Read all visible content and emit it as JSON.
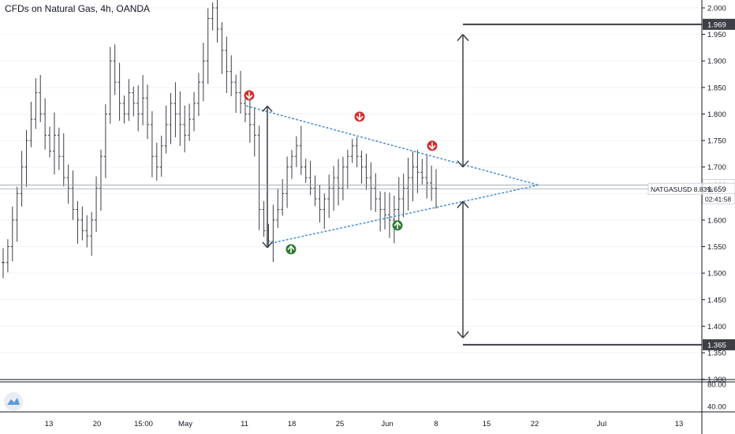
{
  "title": "CFDs on Natural Gas, 4h, OANDA",
  "symbol_label": "NATGASUSD 8.83%",
  "countdown": "02:41:58",
  "chart_data": {
    "type": "candlestick",
    "price_axis": {
      "ticks": [
        "2.000",
        "1.950",
        "1.900",
        "1.850",
        "1.800",
        "1.750",
        "1.700",
        "1.650",
        "1.600",
        "1.550",
        "1.500",
        "1.450",
        "1.400",
        "1.350",
        "1.300"
      ],
      "ylim": [
        1.29,
        2.02
      ]
    },
    "indicator_axis": {
      "ticks": [
        "80.00",
        "40.00"
      ]
    },
    "time_axis": [
      "13",
      "20",
      "15:00",
      "May",
      "11",
      "18",
      "25",
      "Jun",
      "8",
      "15",
      "22",
      "Jul",
      "13"
    ],
    "price_labels": [
      {
        "value": 1.969,
        "text": "1.969",
        "style": "dark"
      },
      {
        "value": 1.666,
        "text": "1.666",
        "style": "light"
      },
      {
        "value": 1.659,
        "text": "1.659",
        "style": "light"
      },
      {
        "value": 1.365,
        "text": "1.365",
        "style": "dark"
      }
    ],
    "last_price": 1.659,
    "series": [
      {
        "values": [
          1.52,
          1.55,
          1.6,
          1.65,
          1.7,
          1.75,
          1.79,
          1.84,
          1.8,
          1.76,
          1.73,
          1.76,
          1.72,
          1.68,
          1.66,
          1.62,
          1.6,
          1.58,
          1.57,
          1.6,
          1.66,
          1.72,
          1.8,
          1.9,
          1.86,
          1.82,
          1.8,
          1.84,
          1.82,
          1.8,
          1.83,
          1.78,
          1.72,
          1.7,
          1.74,
          1.78,
          1.82,
          1.8,
          1.78,
          1.76,
          1.79,
          1.82,
          1.86,
          1.9,
          1.98,
          2.0,
          1.96,
          1.92,
          1.88,
          1.86,
          1.84,
          1.82,
          1.8,
          1.78,
          1.76,
          1.62,
          1.58,
          1.56,
          1.6,
          1.62,
          1.65,
          1.7,
          1.72,
          1.74,
          1.7,
          1.68,
          1.66,
          1.64,
          1.62,
          1.64,
          1.66,
          1.68,
          1.66,
          1.7,
          1.72,
          1.74,
          1.72,
          1.7,
          1.68,
          1.66,
          1.64,
          1.62,
          1.61,
          1.6,
          1.62,
          1.64,
          1.66,
          1.68,
          1.7,
          1.69,
          1.68,
          1.67,
          1.66,
          1.659
        ]
      }
    ],
    "annotations": {
      "upper_trendline": [
        {
          "x": "May 11",
          "y": 1.815
        },
        {
          "x": "Jun 22",
          "y": 1.666
        }
      ],
      "lower_trendline": [
        {
          "x": "May 14",
          "y": 1.555
        },
        {
          "x": "Jun 22",
          "y": 1.666
        }
      ],
      "target_up": 1.969,
      "target_down": 1.365,
      "down_markers": [
        1.835,
        1.795,
        1.74
      ],
      "up_markers": [
        1.545,
        1.59
      ]
    }
  }
}
